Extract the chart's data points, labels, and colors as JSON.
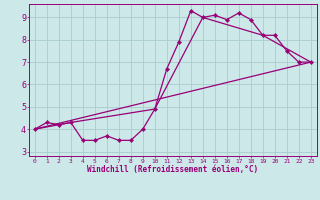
{
  "bg_color": "#cce8e8",
  "grid_color": "#aacccc",
  "line_color": "#990077",
  "marker_color": "#990077",
  "xlabel": "Windchill (Refroidissement éolien,°C)",
  "xlim": [
    -0.5,
    23.5
  ],
  "ylim": [
    2.8,
    9.6
  ],
  "yticks": [
    3,
    4,
    5,
    6,
    7,
    8,
    9
  ],
  "xticks": [
    0,
    1,
    2,
    3,
    4,
    5,
    6,
    7,
    8,
    9,
    10,
    11,
    12,
    13,
    14,
    15,
    16,
    17,
    18,
    19,
    20,
    21,
    22,
    23
  ],
  "series1_x": [
    0,
    1,
    2,
    3,
    4,
    5,
    6,
    7,
    8,
    9,
    10,
    11,
    12,
    13,
    14,
    15,
    16,
    17,
    18,
    19,
    20,
    21,
    22,
    23
  ],
  "series1_y": [
    4.0,
    4.3,
    4.2,
    4.3,
    3.5,
    3.5,
    3.7,
    3.5,
    3.5,
    4.0,
    4.9,
    6.7,
    7.9,
    9.3,
    9.0,
    9.1,
    8.9,
    9.2,
    8.9,
    8.2,
    8.2,
    7.5,
    7.0,
    7.0
  ],
  "series2_x": [
    0,
    3,
    10,
    14,
    19,
    23
  ],
  "series2_y": [
    4.0,
    4.3,
    4.9,
    9.0,
    8.2,
    7.0
  ],
  "series3_x": [
    0,
    23
  ],
  "series3_y": [
    4.0,
    7.0
  ],
  "xlabel_fontsize": 5.5,
  "tick_fontsize_x": 4.5,
  "tick_fontsize_y": 6.0
}
